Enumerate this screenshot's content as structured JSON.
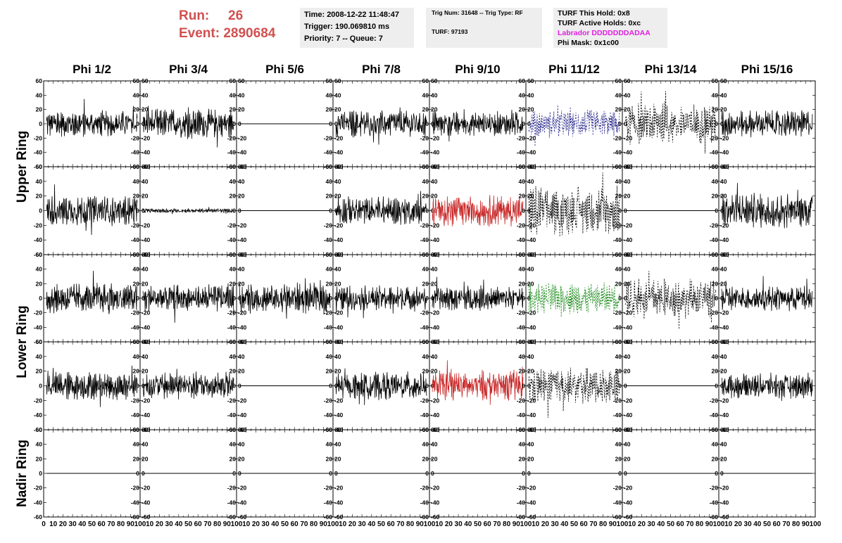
{
  "header": {
    "run_label": "Run:",
    "run_value": "26",
    "event_label": "Event:",
    "event_value": "2890684",
    "time": "Time: 2008-12-22 11:48:47",
    "trigger": "Trigger: 190.069810 ms",
    "priority": "Priority: 7 -- Queue: 7",
    "trig_num": "Trig Num: 31648 -- Trig Type: RF",
    "turf": "TURF: 97193",
    "turf_this_hold": "TURF This Hold: 0x8",
    "turf_active_holds": "TURF Active Holds: 0xc",
    "labrador": "Labrador DDDDDDDADAA",
    "phi_mask": "Phi Mask: 0x1c00"
  },
  "colors": {
    "run_text": "#d05050",
    "labrador_text": "#e020e0",
    "red_trace": "#c82828",
    "blue_trace": "#28288c",
    "green_trace": "#1e8c1e"
  },
  "chart_data": {
    "type": "line",
    "columns": [
      "Phi 1/2",
      "Phi 3/4",
      "Phi 5/6",
      "Phi 7/8",
      "Phi 9/10",
      "Phi 11/12",
      "Phi 13/14",
      "Phi 15/16"
    ],
    "rows": [
      "Upper Ring",
      "Lower Ring",
      "Nadir Ring"
    ],
    "xlim": [
      0,
      100
    ],
    "ylim": [
      -60,
      60
    ],
    "x_ticks": [
      "0",
      "10",
      "20",
      "30",
      "40",
      "50",
      "60",
      "70",
      "80",
      "90",
      "100"
    ],
    "y_ticks": [
      "60",
      "40",
      "20",
      "0",
      "-20",
      "-40",
      "-60"
    ],
    "traces": [
      [
        "solid-20",
        "solid-22",
        "flat",
        "solid-20",
        "solid-18",
        "blue-dash-20",
        "dash-30",
        "solid-20"
      ],
      [
        "solid-22",
        "small-3",
        "flat",
        "solid-20",
        "red-22",
        "dash-35",
        "flat",
        "solid-25"
      ],
      [
        "solid-22",
        "solid-20",
        "solid-22",
        "solid-18",
        "solid-18",
        "green-dash-22",
        "dash-28",
        "solid-18"
      ],
      [
        "solid-20",
        "solid-20",
        "flat",
        "solid-20",
        "red-22",
        "dash-25",
        "flat",
        "solid-18"
      ],
      [
        "flat",
        "flat",
        "flat",
        "flat",
        "flat",
        "flat",
        "flat",
        "flat"
      ]
    ]
  }
}
